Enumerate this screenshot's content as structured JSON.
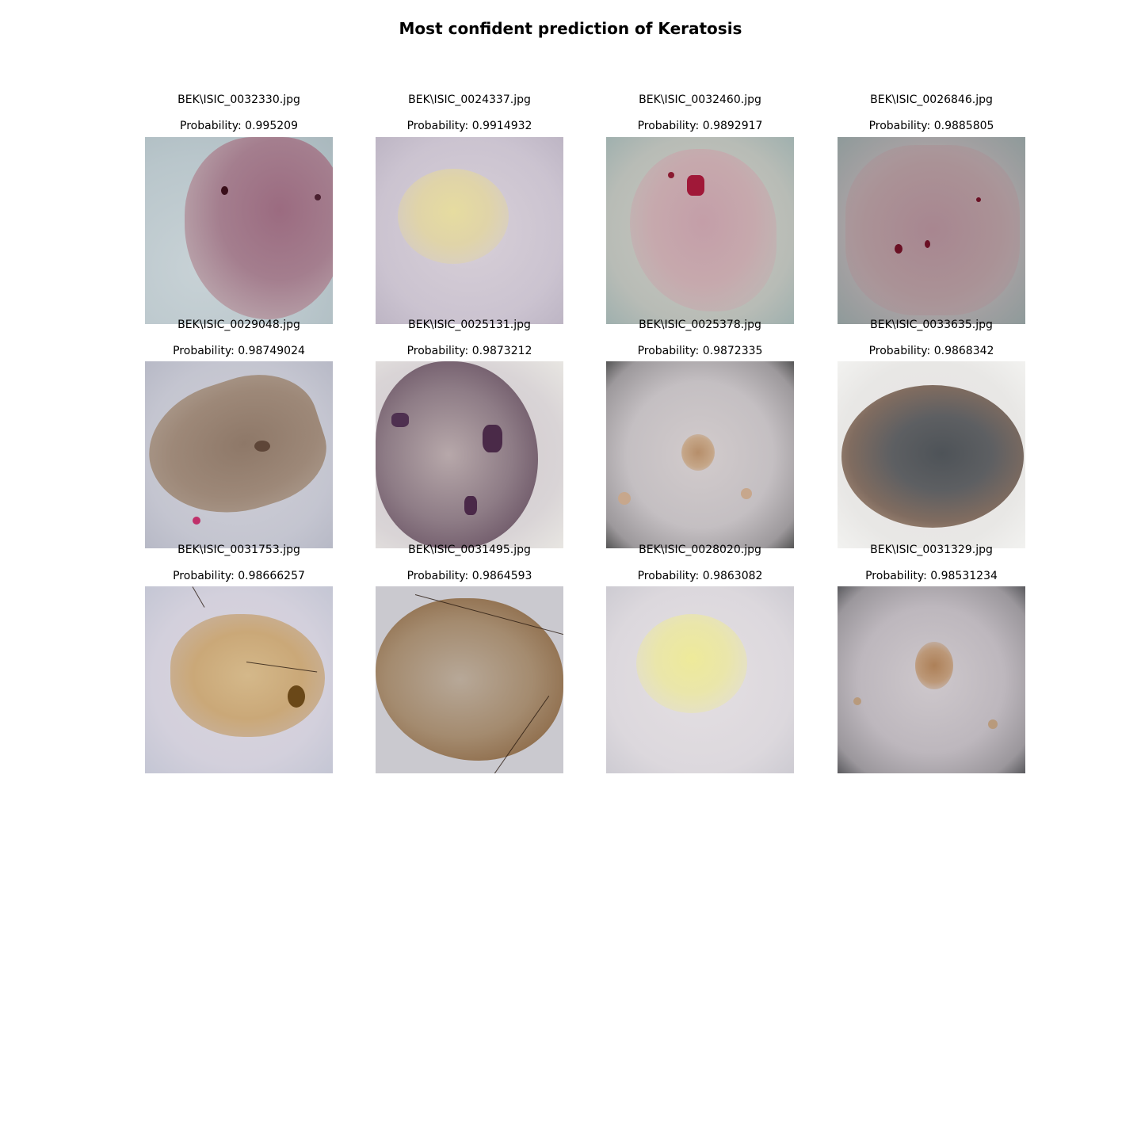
{
  "title": "Most confident prediction of Keratosis",
  "images": [
    {
      "file": "BEK\\ISIC_0032330.jpg",
      "probability": "Probability: 0.995209"
    },
    {
      "file": "BEK\\ISIC_0024337.jpg",
      "probability": "Probability: 0.9914932"
    },
    {
      "file": "BEK\\ISIC_0032460.jpg",
      "probability": "Probability: 0.9892917"
    },
    {
      "file": "BEK\\ISIC_0026846.jpg",
      "probability": "Probability: 0.9885805"
    },
    {
      "file": "BEK\\ISIC_0029048.jpg",
      "probability": "Probability: 0.98749024"
    },
    {
      "file": "BEK\\ISIC_0025131.jpg",
      "probability": "Probability: 0.9873212"
    },
    {
      "file": "BEK\\ISIC_0025378.jpg",
      "probability": "Probability: 0.9872335"
    },
    {
      "file": "BEK\\ISIC_0033635.jpg",
      "probability": "Probability: 0.9868342"
    },
    {
      "file": "BEK\\ISIC_0031753.jpg",
      "probability": "Probability: 0.98666257"
    },
    {
      "file": "BEK\\ISIC_0031495.jpg",
      "probability": "Probability: 0.9864593"
    },
    {
      "file": "BEK\\ISIC_0028020.jpg",
      "probability": "Probability: 0.9863082"
    },
    {
      "file": "BEK\\ISIC_0031329.jpg",
      "probability": "Probability: 0.98531234"
    }
  ]
}
